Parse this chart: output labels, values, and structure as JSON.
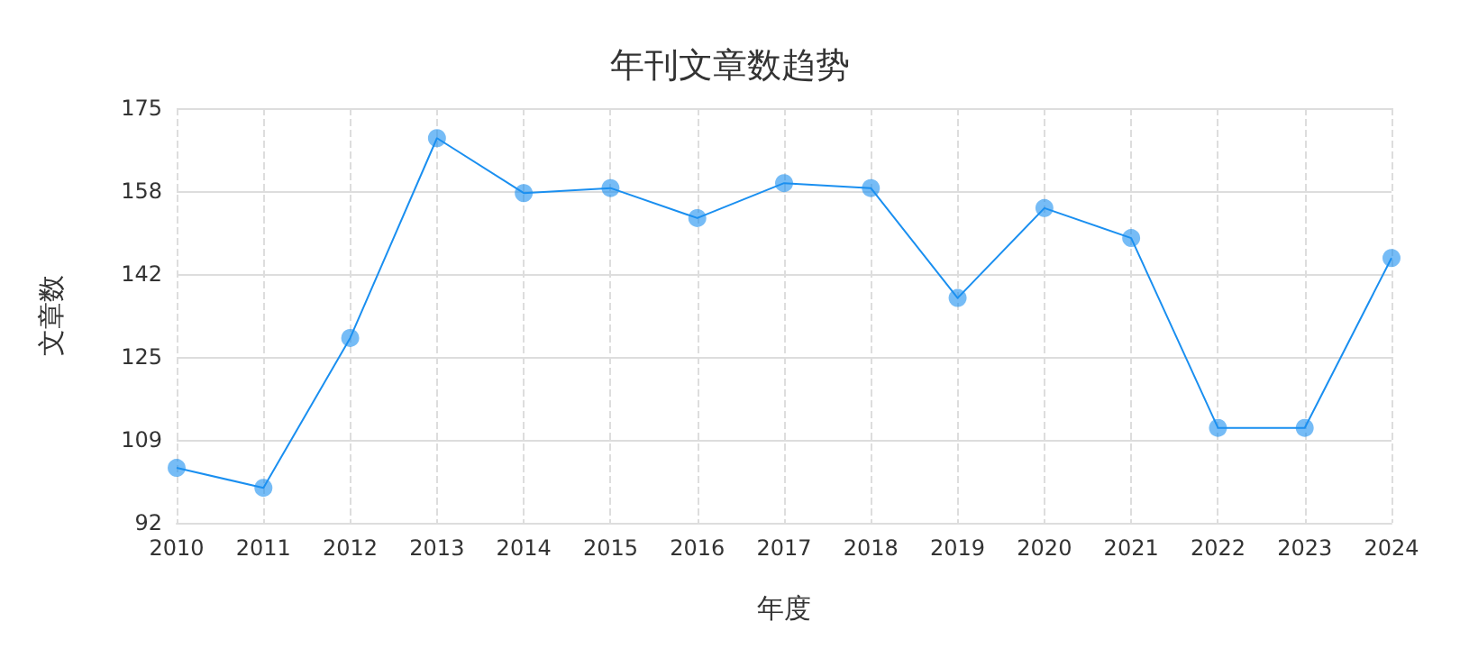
{
  "chart_data": {
    "type": "line",
    "title": "年刊文章数趋势",
    "xlabel": "年度",
    "ylabel": "文章数",
    "categories": [
      "2010",
      "2011",
      "2012",
      "2013",
      "2014",
      "2015",
      "2016",
      "2017",
      "2018",
      "2019",
      "2020",
      "2021",
      "2022",
      "2023",
      "2024"
    ],
    "series": [
      {
        "color": "#1a8ff0",
        "values": [
          103,
          99,
          129,
          169,
          158,
          159,
          153,
          160,
          159,
          137,
          155,
          149,
          111,
          111,
          145
        ]
      }
    ],
    "ylim": [
      92,
      175
    ],
    "yticks": [
      92,
      {
        "value": 108.6,
        "label": "109"
      },
      {
        "value": 125.2,
        "label": "125"
      },
      {
        "value": 141.8,
        "label": "142"
      },
      {
        "value": 158.4,
        "label": "158"
      },
      175
    ],
    "grid": true,
    "marker": "circle",
    "line_style": "solid"
  }
}
